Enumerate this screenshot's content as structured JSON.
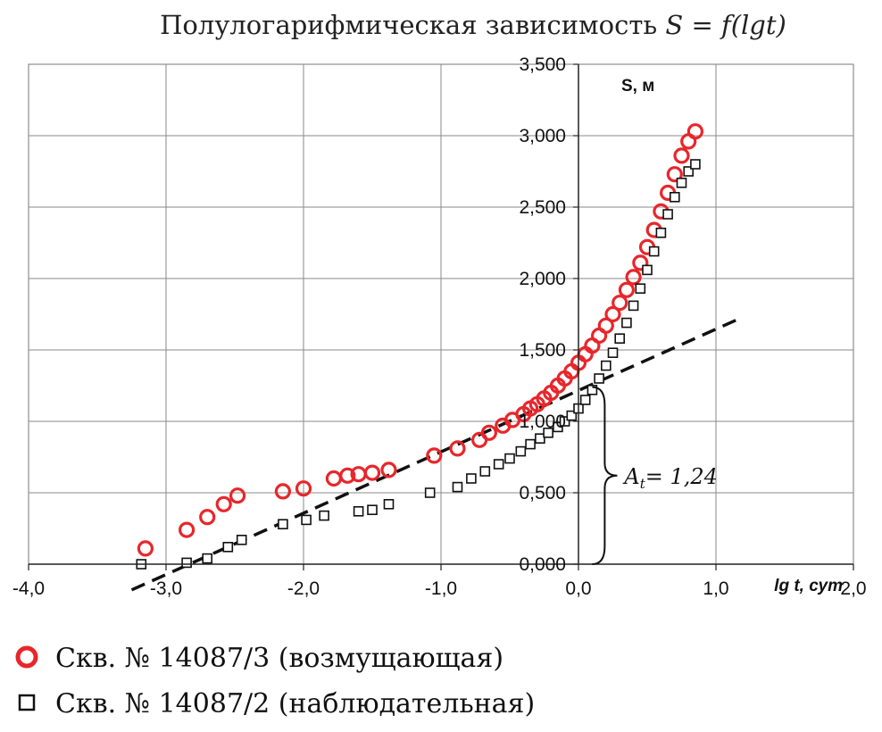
{
  "chart_data": {
    "type": "scatter",
    "title": "Полулогарифмическая зависимость S = f(lgt)",
    "title_prefix": "Полулогарифмическая зависимость ",
    "title_formula": "S = f(lgt)",
    "xlabel": "lg t, сут",
    "ylabel": "S, м",
    "xlim": [
      -4.0,
      2.0
    ],
    "ylim": [
      0,
      3.5
    ],
    "x_ticks": [
      -4.0,
      -3.0,
      -2.0,
      -1.0,
      0.0,
      1.0,
      2.0
    ],
    "x_tick_labels": [
      "-4,0",
      "-3,0",
      "-2,0",
      "-1,0",
      "0,0",
      "1,0",
      "2,0"
    ],
    "y_ticks": [
      0,
      0.5,
      1.0,
      1.5,
      2.0,
      2.5,
      3.0,
      3.5
    ],
    "y_tick_labels": [
      "0,000",
      "0,500",
      "1,000",
      "1,500",
      "2,000",
      "2,500",
      "3,000",
      "3,500"
    ],
    "grid": true,
    "legend_position": "bottom",
    "series": [
      {
        "name": "Скв. № 14087/3 (возмущающая)",
        "marker": "circle",
        "color": "#e8262b",
        "x": [
          -3.15,
          -2.85,
          -2.7,
          -2.58,
          -2.48,
          -2.15,
          -2.0,
          -1.78,
          -1.68,
          -1.6,
          -1.5,
          -1.38,
          -1.05,
          -0.88,
          -0.72,
          -0.65,
          -0.55,
          -0.48,
          -0.4,
          -0.35,
          -0.3,
          -0.25,
          -0.2,
          -0.15,
          -0.1,
          -0.05,
          0.0,
          0.05,
          0.1,
          0.15,
          0.2,
          0.25,
          0.3,
          0.35,
          0.4,
          0.45,
          0.5,
          0.55,
          0.6,
          0.65,
          0.7,
          0.75,
          0.8,
          0.85
        ],
        "y": [
          0.11,
          0.24,
          0.33,
          0.42,
          0.48,
          0.51,
          0.53,
          0.6,
          0.62,
          0.63,
          0.64,
          0.66,
          0.76,
          0.81,
          0.87,
          0.92,
          0.97,
          1.01,
          1.05,
          1.09,
          1.12,
          1.16,
          1.2,
          1.25,
          1.3,
          1.35,
          1.41,
          1.47,
          1.53,
          1.6,
          1.67,
          1.75,
          1.83,
          1.92,
          2.01,
          2.11,
          2.22,
          2.34,
          2.47,
          2.6,
          2.73,
          2.86,
          2.96,
          3.03
        ]
      },
      {
        "name": "Скв. № 14087/2 (наблюдательная)",
        "marker": "square",
        "color": "#111111",
        "x": [
          -3.18,
          -2.85,
          -2.7,
          -2.55,
          -2.45,
          -2.15,
          -1.98,
          -1.85,
          -1.6,
          -1.5,
          -1.38,
          -1.08,
          -0.88,
          -0.78,
          -0.68,
          -0.58,
          -0.5,
          -0.42,
          -0.35,
          -0.28,
          -0.22,
          -0.15,
          -0.1,
          -0.05,
          0.0,
          0.05,
          0.1,
          0.15,
          0.2,
          0.25,
          0.3,
          0.35,
          0.4,
          0.45,
          0.5,
          0.55,
          0.6,
          0.65,
          0.7,
          0.75,
          0.8,
          0.85
        ],
        "y": [
          0.0,
          0.01,
          0.04,
          0.12,
          0.17,
          0.28,
          0.31,
          0.34,
          0.37,
          0.38,
          0.42,
          0.5,
          0.54,
          0.6,
          0.65,
          0.7,
          0.74,
          0.79,
          0.84,
          0.88,
          0.92,
          0.96,
          1.0,
          1.04,
          1.09,
          1.15,
          1.22,
          1.3,
          1.39,
          1.48,
          1.58,
          1.69,
          1.81,
          1.93,
          2.06,
          2.19,
          2.32,
          2.45,
          2.57,
          2.67,
          2.75,
          2.8
        ]
      }
    ],
    "trend_line": {
      "style": "dashed",
      "x": [
        -3.25,
        1.15
      ],
      "y": [
        -0.18,
        1.71
      ]
    },
    "annotation": {
      "text": "At = 1,24",
      "text_main": "A",
      "text_sub": "t",
      "text_value": "= 1,24",
      "brace_x": 0.1,
      "brace_y_range": [
        0.0,
        1.24
      ]
    }
  },
  "legend": [
    {
      "label": "Скв. № 14087/3 (возмущающая)",
      "marker": "circle",
      "color": "#e8262b"
    },
    {
      "label": "Скв. № 14087/2 (наблюдательная)",
      "marker": "square",
      "color": "#111111"
    }
  ]
}
